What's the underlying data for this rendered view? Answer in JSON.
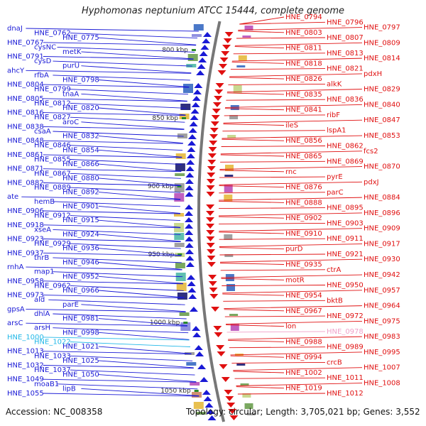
{
  "title": "Hyphomonas neptunium ATCC 15444, complete genome",
  "accession": "Accession: NC_008358",
  "topology": "Topology: circular; Length: 3,705,021 bp; Genes: 3,552",
  "colors": {
    "left_gene": "#1a1ad6",
    "right_gene": "#e01010",
    "left_highlight": "#22b8e8",
    "right_highlight": "#f0a0c8",
    "backbone": "#777777",
    "tick": "#2a8a2a"
  },
  "scale_ticks": [
    {
      "label": "800 kbp"
    },
    {
      "label": "850 kbp"
    },
    {
      "label": "900 kbp"
    },
    {
      "label": "950 kbp"
    },
    {
      "label": "1000 kbp"
    },
    {
      "label": "1050 kbp"
    }
  ],
  "left_labels": [
    "dnaJ",
    "HNE_0762",
    "HNE_0775",
    "HNE_0767",
    "cysNC",
    "metK",
    "HNE_0791",
    "cysD",
    "purU",
    "ahcY",
    "rfbA",
    "HNE_0798",
    "HNE_0804",
    "HNE_0799",
    "tnaA",
    "HNE_0805",
    "HNE_0812",
    "HNE_0820",
    "HNE_0816",
    "HNE_0827",
    "aroC",
    "HNE_0838",
    "csaA",
    "HNE_0832",
    "HNE_0848",
    "HNE_0846",
    "HNE_0854",
    "HNE_0861",
    "HNE_0855",
    "HNE_0866",
    "HNE_0871",
    "HNE_0867",
    "HNE_0880",
    "HNE_0882",
    "HNE_0889",
    "HNE_0892",
    "ate",
    "hemB",
    "HNE_0901",
    "HNE_0906",
    "HNE_0912",
    "HNE_0915",
    "HNE_0918",
    "xseA",
    "HNE_0924",
    "HNE_0923",
    "HNE_0929",
    "HNE_0936",
    "HNE_0937",
    "thrB",
    "HNE_0946",
    "rnhA",
    "map1",
    "HNE_0952",
    "HNE_0958",
    "HNE_0962",
    "HNE_0966",
    "HNE_0973",
    "ald",
    "parE",
    "gpsA",
    "dhlA",
    "HNE_0981",
    "arsC",
    "arsH",
    "HNE_0998",
    "HNE_1000",
    "HNE_1022",
    "HNE_1021",
    "HNE_1013",
    "HNE_1033",
    "HNE_1025",
    "HNE_1032",
    "HNE_1037",
    "HNE_1050",
    "HNE_1049",
    "moaB1",
    "lipB",
    "HNE_1055"
  ],
  "right_labels": [
    "HNE_0794",
    "HNE_0796",
    "HNE_0797",
    "HNE_0803",
    "HNE_0807",
    "HNE_0809",
    "HNE_0811",
    "HNE_0813",
    "HNE_0814",
    "HNE_0818",
    "HNE_0821",
    "pdxH",
    "HNE_0826",
    "alkK",
    "HNE_0829",
    "HNE_0835",
    "HNE_0836",
    "HNE_0840",
    "HNE_0841",
    "ribF",
    "HNE_0847",
    "ileS",
    "lspA1",
    "HNE_0853",
    "HNE_0856",
    "HNE_0862",
    "fcs2",
    "HNE_0865",
    "HNE_0869",
    "HNE_0870",
    "rnc",
    "pyrE",
    "pdxJ",
    "HNE_0876",
    "parC",
    "HNE_0884",
    "HNE_0888",
    "HNE_0895",
    "HNE_0896",
    "HNE_0902",
    "HNE_0903",
    "HNE_0909",
    "HNE_0910",
    "HNE_0911",
    "HNE_0917",
    "purD",
    "HNE_0921",
    "HNE_0930",
    "HNE_0935",
    "ctrA",
    "HNE_0942",
    "motR",
    "HNE_0950",
    "HNE_0957",
    "HNE_0954",
    "bktB",
    "HNE_0964",
    "HNE_0967",
    "HNE_0972",
    "HNE_0975",
    "lon",
    "HNE_0978",
    "HNE_0983",
    "HNE_0988",
    "HNE_0989",
    "HNE_0995",
    "HNE_0994",
    "crcB",
    "HNE_1007",
    "HNE_1002",
    "HNE_1011",
    "HNE_1008",
    "HNE_1019",
    "HNE_1012"
  ]
}
